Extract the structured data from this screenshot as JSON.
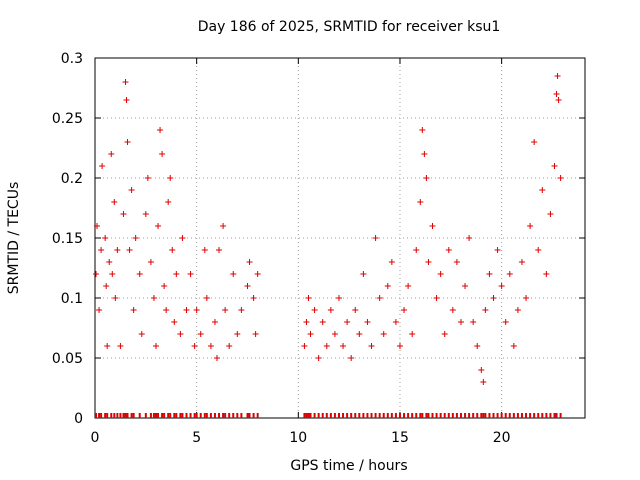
{
  "chart_data": {
    "type": "scatter",
    "title": "Day 186 of 2025, SRMTID for receiver ksu1",
    "xlabel": "GPS time / hours",
    "ylabel": "SRMTID / TECUs",
    "xlim": [
      0,
      24.1
    ],
    "ylim": [
      0,
      0.3
    ],
    "x_ticks": [
      0,
      5,
      10,
      15,
      20
    ],
    "y_ticks": [
      0,
      0.05,
      0.1,
      0.15,
      0.2,
      0.25,
      0.3
    ],
    "x_tick_labels": [
      "0",
      "5",
      "10",
      "15",
      "20"
    ],
    "y_tick_labels": [
      "0",
      "0.05",
      "0.1",
      "0.15",
      "0.2",
      "0.25",
      "0.3"
    ],
    "grid": true,
    "marker": "+",
    "color": "#dd0000",
    "data_gap_hours": [
      8.1,
      10.2
    ],
    "series": [
      {
        "name": "SRMTID",
        "points": [
          [
            0.05,
            0.12
          ],
          [
            0.1,
            0.16
          ],
          [
            0.2,
            0.09
          ],
          [
            0.3,
            0.14
          ],
          [
            0.35,
            0.21
          ],
          [
            0.5,
            0.15
          ],
          [
            0.55,
            0.11
          ],
          [
            0.6,
            0.06
          ],
          [
            0.7,
            0.13
          ],
          [
            0.8,
            0.22
          ],
          [
            0.85,
            0.12
          ],
          [
            0.95,
            0.18
          ],
          [
            1.0,
            0.1
          ],
          [
            1.1,
            0.14
          ],
          [
            1.25,
            0.06
          ],
          [
            1.4,
            0.17
          ],
          [
            1.5,
            0.28
          ],
          [
            1.55,
            0.265
          ],
          [
            1.6,
            0.23
          ],
          [
            1.7,
            0.14
          ],
          [
            1.8,
            0.19
          ],
          [
            1.9,
            0.09
          ],
          [
            2.0,
            0.15
          ],
          [
            2.2,
            0.12
          ],
          [
            2.3,
            0.07
          ],
          [
            2.5,
            0.17
          ],
          [
            2.6,
            0.2
          ],
          [
            2.75,
            0.13
          ],
          [
            2.9,
            0.1
          ],
          [
            3.0,
            0.06
          ],
          [
            3.1,
            0.16
          ],
          [
            3.2,
            0.24
          ],
          [
            3.3,
            0.22
          ],
          [
            3.4,
            0.11
          ],
          [
            3.5,
            0.09
          ],
          [
            3.6,
            0.18
          ],
          [
            3.7,
            0.2
          ],
          [
            3.8,
            0.14
          ],
          [
            3.9,
            0.08
          ],
          [
            4.0,
            0.12
          ],
          [
            4.2,
            0.07
          ],
          [
            4.3,
            0.15
          ],
          [
            4.5,
            0.09
          ],
          [
            4.7,
            0.12
          ],
          [
            4.9,
            0.06
          ],
          [
            5.0,
            0.09
          ],
          [
            5.2,
            0.07
          ],
          [
            5.4,
            0.14
          ],
          [
            5.5,
            0.1
          ],
          [
            5.7,
            0.06
          ],
          [
            5.9,
            0.08
          ],
          [
            6.0,
            0.05
          ],
          [
            6.1,
            0.14
          ],
          [
            6.3,
            0.16
          ],
          [
            6.4,
            0.09
          ],
          [
            6.6,
            0.06
          ],
          [
            6.8,
            0.12
          ],
          [
            7.0,
            0.07
          ],
          [
            7.2,
            0.09
          ],
          [
            7.5,
            0.11
          ],
          [
            7.6,
            0.13
          ],
          [
            7.8,
            0.1
          ],
          [
            7.9,
            0.07
          ],
          [
            8.0,
            0.12
          ],
          [
            10.3,
            0.06
          ],
          [
            10.4,
            0.08
          ],
          [
            10.5,
            0.1
          ],
          [
            10.6,
            0.07
          ],
          [
            10.8,
            0.09
          ],
          [
            11.0,
            0.05
          ],
          [
            11.2,
            0.08
          ],
          [
            11.4,
            0.06
          ],
          [
            11.6,
            0.09
          ],
          [
            11.8,
            0.07
          ],
          [
            12.0,
            0.1
          ],
          [
            12.2,
            0.06
          ],
          [
            12.4,
            0.08
          ],
          [
            12.6,
            0.05
          ],
          [
            12.8,
            0.09
          ],
          [
            13.0,
            0.07
          ],
          [
            13.2,
            0.12
          ],
          [
            13.4,
            0.08
          ],
          [
            13.6,
            0.06
          ],
          [
            13.8,
            0.15
          ],
          [
            14.0,
            0.1
          ],
          [
            14.2,
            0.07
          ],
          [
            14.4,
            0.11
          ],
          [
            14.6,
            0.13
          ],
          [
            14.8,
            0.08
          ],
          [
            15.0,
            0.06
          ],
          [
            15.2,
            0.09
          ],
          [
            15.4,
            0.11
          ],
          [
            15.6,
            0.07
          ],
          [
            15.8,
            0.14
          ],
          [
            16.0,
            0.18
          ],
          [
            16.1,
            0.24
          ],
          [
            16.2,
            0.22
          ],
          [
            16.3,
            0.2
          ],
          [
            16.4,
            0.13
          ],
          [
            16.6,
            0.16
          ],
          [
            16.8,
            0.1
          ],
          [
            17.0,
            0.12
          ],
          [
            17.2,
            0.07
          ],
          [
            17.4,
            0.14
          ],
          [
            17.6,
            0.09
          ],
          [
            17.8,
            0.13
          ],
          [
            18.0,
            0.08
          ],
          [
            18.2,
            0.11
          ],
          [
            18.4,
            0.15
          ],
          [
            18.6,
            0.08
          ],
          [
            18.8,
            0.06
          ],
          [
            19.0,
            0.04
          ],
          [
            19.1,
            0.03
          ],
          [
            19.2,
            0.09
          ],
          [
            19.4,
            0.12
          ],
          [
            19.6,
            0.1
          ],
          [
            19.8,
            0.14
          ],
          [
            20.0,
            0.11
          ],
          [
            20.2,
            0.08
          ],
          [
            20.4,
            0.12
          ],
          [
            20.6,
            0.06
          ],
          [
            20.8,
            0.09
          ],
          [
            21.0,
            0.13
          ],
          [
            21.2,
            0.1
          ],
          [
            21.4,
            0.16
          ],
          [
            21.6,
            0.23
          ],
          [
            21.8,
            0.14
          ],
          [
            22.0,
            0.19
          ],
          [
            22.2,
            0.12
          ],
          [
            22.4,
            0.17
          ],
          [
            22.6,
            0.21
          ],
          [
            22.7,
            0.27
          ],
          [
            22.75,
            0.285
          ],
          [
            22.8,
            0.265
          ],
          [
            22.9,
            0.2
          ]
        ]
      }
    ]
  }
}
